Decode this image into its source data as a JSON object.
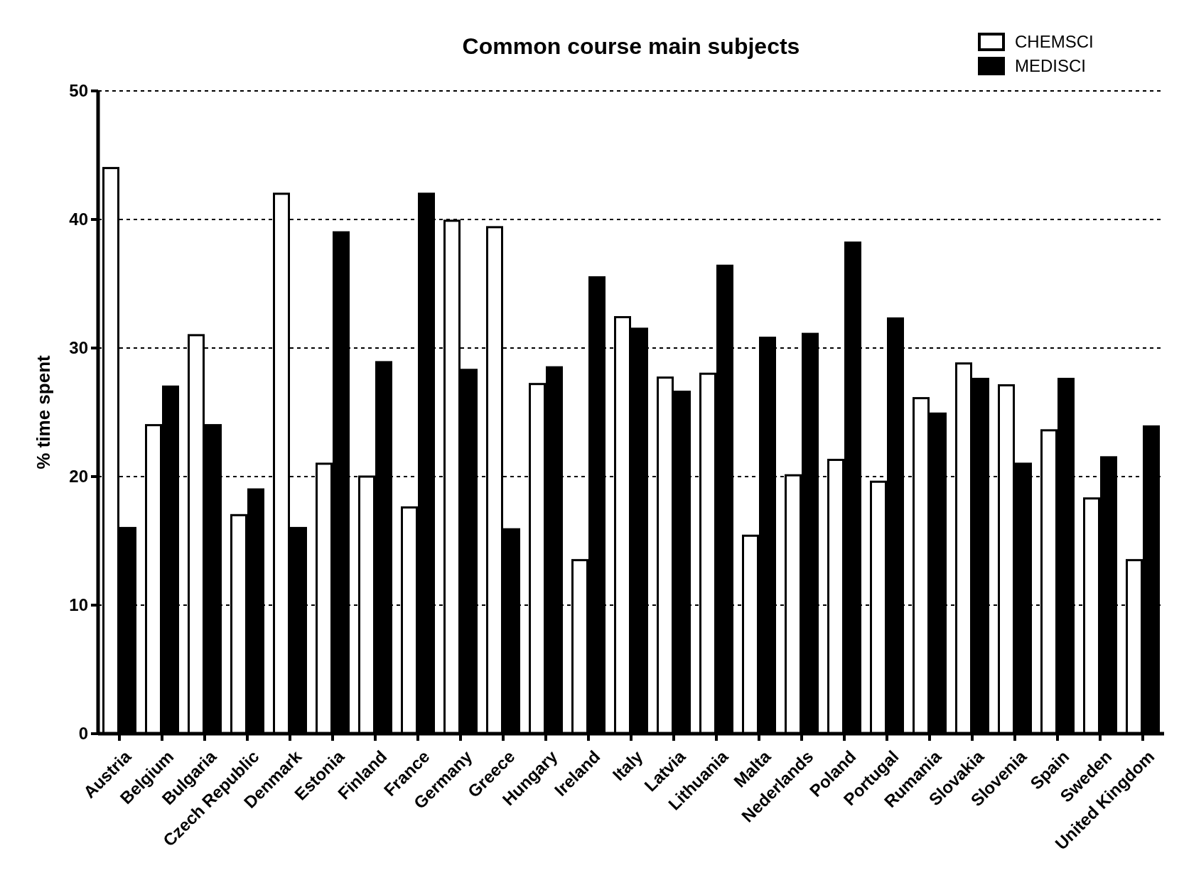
{
  "chart_data": {
    "type": "bar",
    "title": "Common course main subjects",
    "ylabel": "% time spent",
    "categories": [
      "Austria",
      "Belgium",
      "Bulgaria",
      "Czech Republic",
      "Denmark",
      "Estonia",
      "Finland",
      "France",
      "Germany",
      "Greece",
      "Hungary",
      "Ireland",
      "Italy",
      "Latvia",
      "Lithuania",
      "Malta",
      "Nederlands",
      "Poland",
      "Portugal",
      "Rumania",
      "Slovakia",
      "Slovenia",
      "Spain",
      "Sweden",
      "United Kingdom"
    ],
    "series": [
      {
        "name": "CHEMSCI",
        "color": "#ffffff",
        "values": [
          44,
          24,
          31,
          17,
          42,
          21,
          20,
          17.6,
          39.9,
          39.4,
          27.2,
          13.5,
          32.4,
          27.7,
          28,
          15.4,
          20.1,
          21.3,
          19.6,
          26.1,
          28.8,
          27.1,
          23.6,
          18.3,
          13.5
        ]
      },
      {
        "name": "MEDISCI",
        "color": "#000000",
        "values": [
          16,
          27,
          24,
          19,
          16,
          39,
          28.9,
          42,
          28.3,
          15.9,
          28.5,
          35.5,
          31.5,
          26.6,
          36.4,
          30.8,
          31.1,
          38.2,
          32.3,
          24.9,
          27.6,
          21,
          27.6,
          21.5,
          23.9
        ]
      }
    ],
    "ylim": [
      0,
      50
    ],
    "yticks": [
      0,
      10,
      20,
      30,
      40,
      50
    ],
    "grid": "y",
    "legend": "top right"
  }
}
